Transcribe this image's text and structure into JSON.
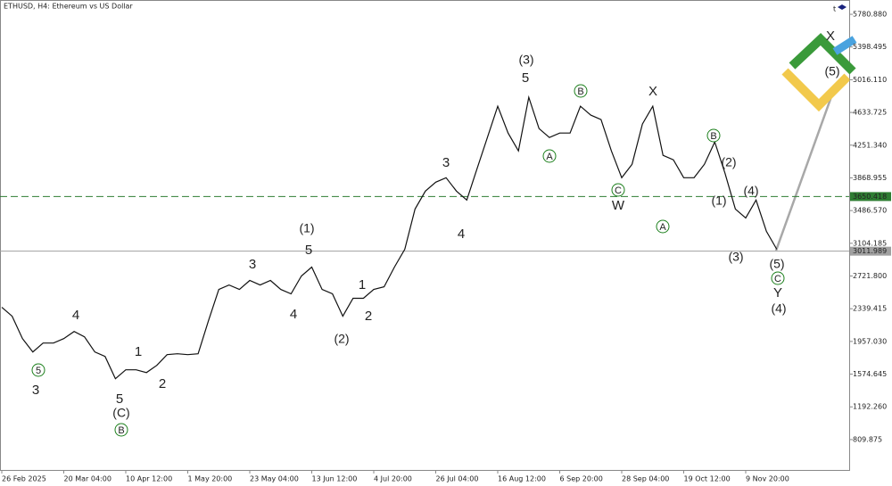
{
  "chart_data": {
    "type": "line",
    "title": "ETHUSD, H4:  Ethereum vs US Dollar",
    "categories": [
      "26 Feb 2025",
      null,
      null,
      null,
      null,
      null,
      "20 Mar 04:00",
      null,
      null,
      null,
      null,
      null,
      "10 Apr 12:00",
      null,
      null,
      null,
      null,
      null,
      "1 May 20:00",
      null,
      null,
      null,
      null,
      null,
      "23 May 04:00",
      null,
      null,
      null,
      null,
      null,
      "13 Jun 12:00",
      null,
      null,
      null,
      null,
      null,
      "4 Jul 20:00",
      null,
      null,
      null,
      null,
      null,
      "26 Jul 04:00",
      null,
      null,
      null,
      null,
      null,
      "16 Aug 12:00",
      null,
      null,
      null,
      null,
      null,
      "6 Sep 20:00",
      null,
      null,
      null,
      null,
      null,
      "28 Sep 04:00",
      null,
      null,
      null,
      null,
      null,
      "19 Oct 12:00",
      null,
      null,
      null,
      null,
      null,
      "9 Nov 20:00",
      null,
      null,
      null
    ],
    "values": [
      2356,
      2252,
      1990,
      1834,
      1938,
      1938,
      1990,
      2074,
      2011,
      1834,
      1782,
      1521,
      1625,
      1625,
      1593,
      1677,
      1802,
      1813,
      1802,
      1813,
      2199,
      2565,
      2617,
      2565,
      2670,
      2617,
      2670,
      2565,
      2513,
      2722,
      2826,
      2565,
      2513,
      2252,
      2461,
      2461,
      2565,
      2596,
      2826,
      3035,
      3505,
      3714,
      3819,
      3871,
      3714,
      3610,
      3976,
      4341,
      4707,
      4393,
      4184,
      4811,
      4445,
      4341,
      4393,
      4393,
      4707,
      4602,
      4550,
      4184,
      3871,
      4028,
      4498,
      4707,
      4132,
      4080,
      3871,
      3871,
      4028,
      4289,
      3923,
      3505,
      3400,
      3610,
      3244,
      3035
    ],
    "color": "#111111",
    "ylim": [
      454.7,
      5948.1
    ],
    "yticks": [
      {
        "value": 5780.88,
        "label": "5780.880"
      },
      5398.495,
      {
        "value": 5016.11,
        "label": "5016.110"
      },
      4633.725,
      {
        "value": 4251.34,
        "label": "4251.340"
      },
      3868.955,
      {
        "value": 3486.57,
        "label": "3486.570"
      },
      3104.185,
      {
        "value": 2721.8,
        "label": "2721.800"
      },
      2339.415,
      {
        "value": 1957.03,
        "label": "1957.030"
      },
      1574.645,
      {
        "value": 1192.26,
        "label": "1192.260"
      },
      809.875
    ],
    "levels": [
      {
        "value": 3650.418,
        "color": "#2e7d32"
      },
      {
        "value": 3011.989,
        "color": "#a0a0a0"
      }
    ],
    "annotations": [
      {
        "text": "(3)",
        "color": "#1a237e"
      },
      {
        "text": "5",
        "color": "#8b1a1a"
      },
      {
        "text": "B",
        "color": "#1b7f1b",
        "circled": true
      },
      {
        "text": "X",
        "color": "#8b1a1a"
      },
      {
        "text": "A",
        "color": "#1b7f1b",
        "circled": true
      },
      {
        "text": "C",
        "color": "#1b7f1b",
        "circled": true
      },
      {
        "text": "W",
        "color": "#8b1a1a"
      },
      {
        "text": "A",
        "color": "#1b7f1b",
        "circled": true
      },
      {
        "text": "B",
        "color": "#1b7f1b",
        "circled": true
      },
      {
        "text": "(2)",
        "color": "#1a237e"
      },
      {
        "text": "(1)",
        "color": "#1a237e"
      },
      {
        "text": "(4)",
        "color": "#1a237e"
      },
      {
        "text": "(3)",
        "color": "#1a237e"
      },
      {
        "text": "(5)",
        "color": "#1a237e"
      },
      {
        "text": "C",
        "color": "#1b7f1b",
        "circled": true
      },
      {
        "text": "Y",
        "color": "#8b1a1a"
      },
      {
        "text": "(4)",
        "color": "#1a237e"
      },
      {
        "text": "3",
        "color": "#8b1a1a"
      },
      {
        "text": "4",
        "color": "#8b1a1a"
      },
      {
        "text": "(1)",
        "color": "#1a237e"
      },
      {
        "text": "5",
        "color": "#8b1a1a"
      },
      {
        "text": "3",
        "color": "#8b1a1a"
      },
      {
        "text": "4",
        "color": "#8b1a1a"
      },
      {
        "text": "1",
        "color": "#8b1a1a"
      },
      {
        "text": "2",
        "color": "#8b1a1a"
      },
      {
        "text": "(2)",
        "color": "#1a237e"
      },
      {
        "text": "4",
        "color": "#8b1a1a"
      },
      {
        "text": "5",
        "color": "#1b7f1b",
        "circled": true
      },
      {
        "text": "3",
        "color": "#8b1a1a"
      },
      {
        "text": "1",
        "color": "#8b1a1a"
      },
      {
        "text": "2",
        "color": "#8b1a1a"
      },
      {
        "text": "5",
        "color": "#8b1a1a"
      },
      {
        "text": "(C)",
        "color": "#1a237e"
      },
      {
        "text": "B",
        "color": "#1b7f1b",
        "circled": true
      },
      {
        "text": "X",
        "color": "#8b1a1a"
      },
      {
        "text": "(5)",
        "color": "#1a237e"
      }
    ]
  }
}
